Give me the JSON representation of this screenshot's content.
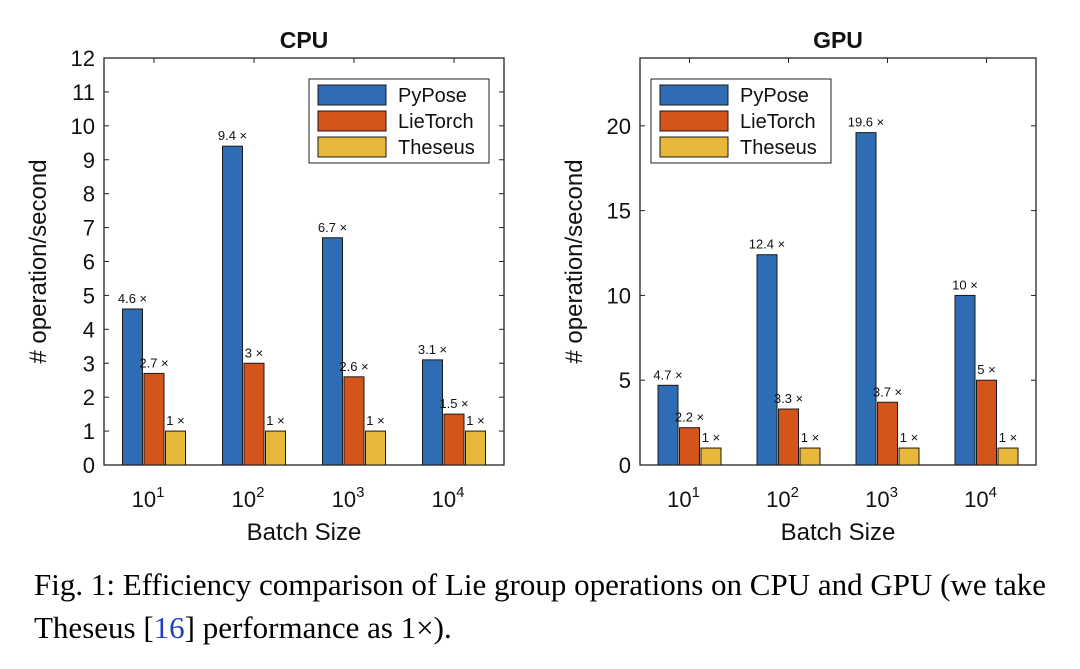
{
  "chart_data": [
    {
      "type": "bar",
      "title": "CPU",
      "xlabel": "Batch Size",
      "ylabel": "# operation/second",
      "categories": [
        "10^1",
        "10^2",
        "10^3",
        "10^4"
      ],
      "category_base": "10",
      "category_exponents": [
        "1",
        "2",
        "3",
        "4"
      ],
      "ylim": [
        0,
        12
      ],
      "yticks": [
        "0",
        "1",
        "2",
        "3",
        "4",
        "5",
        "6",
        "7",
        "8",
        "9",
        "10",
        "11",
        "12"
      ],
      "legend_position": "top-right",
      "grid": false,
      "series": [
        {
          "name": "PyPose",
          "color": "#2e6db4",
          "values": [
            4.6,
            9.4,
            6.7,
            3.1
          ],
          "labels": [
            "4.6 ×",
            "9.4 ×",
            "6.7 ×",
            "3.1 ×"
          ]
        },
        {
          "name": "LieTorch",
          "color": "#d4541c",
          "values": [
            2.7,
            3.0,
            2.6,
            1.5
          ],
          "labels": [
            "2.7 ×",
            "3 ×",
            "2.6 ×",
            "1.5 ×"
          ]
        },
        {
          "name": "Theseus",
          "color": "#e8b83a",
          "values": [
            1,
            1,
            1,
            1
          ],
          "labels": [
            "1 ×",
            "1 ×",
            "1 ×",
            "1 ×"
          ]
        }
      ]
    },
    {
      "type": "bar",
      "title": "GPU",
      "xlabel": "Batch Size",
      "ylabel": "# operation/second",
      "categories": [
        "10^1",
        "10^2",
        "10^3",
        "10^4"
      ],
      "category_base": "10",
      "category_exponents": [
        "1",
        "2",
        "3",
        "4"
      ],
      "ylim": [
        0,
        24
      ],
      "yticks": [
        "0",
        "5",
        "10",
        "15",
        "20"
      ],
      "legend_position": "top-left",
      "grid": false,
      "series": [
        {
          "name": "PyPose",
          "color": "#2e6db4",
          "values": [
            4.7,
            12.4,
            19.6,
            10
          ],
          "labels": [
            "4.7 ×",
            "12.4 ×",
            "19.6 ×",
            "10 ×"
          ]
        },
        {
          "name": "LieTorch",
          "color": "#d4541c",
          "values": [
            2.2,
            3.3,
            3.7,
            5
          ],
          "labels": [
            "2.2 ×",
            "3.3 ×",
            "3.7 ×",
            "5 ×"
          ]
        },
        {
          "name": "Theseus",
          "color": "#e8b83a",
          "values": [
            1,
            1,
            1,
            1
          ],
          "labels": [
            "1 ×",
            "1 ×",
            "1 ×",
            "1 ×"
          ]
        }
      ]
    }
  ],
  "caption": {
    "prefix": "Fig. 1: Efficiency comparison of Lie group operations on CPU and GPU (we take Theseus [",
    "ref": "16",
    "suffix": "] performance as 1×)."
  }
}
